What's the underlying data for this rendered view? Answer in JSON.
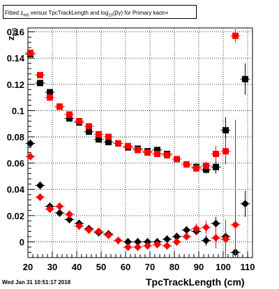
{
  "title": {
    "prefix": "Fitted  z",
    "z_sub": "m0",
    "middle": " versus TpcTrackLength and log",
    "log_sub": "10",
    "suffix": "(βγ) for Primary kaon+"
  },
  "footer_date": "Wed Jan 31 10:51:17 2018",
  "chart_data": {
    "type": "scatter",
    "xlabel": "TpcTrackLength (cm)",
    "ylabel": "z",
    "ylabel_sub": "m0",
    "xlim": [
      20,
      112
    ],
    "ylim": [
      -0.012,
      0.163
    ],
    "xticks": [
      20,
      30,
      40,
      50,
      60,
      70,
      80,
      90,
      100,
      110
    ],
    "xtick_labels": [
      "20",
      "30",
      "40",
      "50",
      "60",
      "70",
      "80",
      "90",
      "100",
      "110"
    ],
    "yticks": [
      0,
      0.02,
      0.04,
      0.06,
      0.08,
      0.1,
      0.12,
      0.14,
      0.16
    ],
    "ytick_labels": [
      "0",
      "0.02",
      "0.04",
      "0.06",
      "0.08",
      "0.1",
      "0.12",
      "0.14",
      "0.16"
    ],
    "grid": true,
    "colors": {
      "black_series": "#000000",
      "red_series": "#ff0000"
    },
    "series": [
      {
        "marker": "square",
        "color": "#000000",
        "points": [
          [
            21,
            0.143
          ],
          [
            25,
            0.121
          ],
          [
            29,
            0.114
          ],
          [
            33,
            0.103
          ],
          [
            37,
            0.094
          ],
          [
            41,
            0.091
          ],
          [
            45,
            0.084
          ],
          [
            49,
            0.078
          ],
          [
            53,
            0.076
          ],
          [
            57,
            0.075
          ],
          [
            61,
            0.072
          ],
          [
            65,
            0.071
          ],
          [
            69,
            0.069
          ],
          [
            73,
            0.07
          ],
          [
            77,
            0.067
          ],
          [
            81,
            0.063
          ],
          [
            85,
            0.059
          ],
          [
            89,
            0.057
          ],
          [
            93,
            0.055
          ],
          [
            97,
            0.057
          ],
          [
            101,
            0.085
          ],
          [
            109,
            0.124
          ]
        ],
        "yerr": [
          0.002,
          0.002,
          0.002,
          0.002,
          0.002,
          0.002,
          0.002,
          0.002,
          0.002,
          0.002,
          0.002,
          0.002,
          0.002,
          0.002,
          0.002,
          0.002,
          0.002,
          0.003,
          0.003,
          0.005,
          0.01,
          0.012
        ]
      },
      {
        "marker": "square",
        "color": "#ff0000",
        "points": [
          [
            21,
            0.144
          ],
          [
            25,
            0.127
          ],
          [
            29,
            0.11
          ],
          [
            33,
            0.103
          ],
          [
            37,
            0.097
          ],
          [
            41,
            0.092
          ],
          [
            45,
            0.088
          ],
          [
            49,
            0.082
          ],
          [
            53,
            0.08
          ],
          [
            57,
            0.075
          ],
          [
            61,
            0.073
          ],
          [
            65,
            0.07
          ],
          [
            69,
            0.068
          ],
          [
            73,
            0.067
          ],
          [
            77,
            0.066
          ],
          [
            81,
            0.063
          ],
          [
            85,
            0.059
          ],
          [
            89,
            0.056
          ],
          [
            93,
            0.058
          ],
          [
            97,
            0.067
          ],
          [
            101,
            0.069
          ],
          [
            105,
            0.157
          ]
        ],
        "yerr": [
          0.002,
          0.002,
          0.002,
          0.002,
          0.002,
          0.002,
          0.002,
          0.002,
          0.002,
          0.002,
          0.002,
          0.002,
          0.002,
          0.002,
          0.002,
          0.002,
          0.002,
          0.003,
          0.003,
          0.006,
          0.01,
          0.005
        ]
      },
      {
        "marker": "diamond",
        "color": "#000000",
        "points": [
          [
            21,
            0.075
          ],
          [
            25,
            0.043
          ],
          [
            29,
            0.027
          ],
          [
            33,
            0.022
          ],
          [
            37,
            0.017
          ],
          [
            41,
            0.014
          ],
          [
            45,
            0.01
          ],
          [
            49,
            0.007
          ],
          [
            53,
            0.006
          ],
          [
            61,
            0.0
          ],
          [
            65,
            0.0
          ],
          [
            69,
            0.0
          ],
          [
            73,
            0.0
          ],
          [
            77,
            0.002
          ],
          [
            81,
            0.004
          ],
          [
            85,
            0.009
          ],
          [
            89,
            0.008
          ],
          [
            93,
            0.001
          ],
          [
            97,
            0.014
          ],
          [
            101,
            0.004
          ],
          [
            105,
            -0.008
          ],
          [
            109,
            0.029
          ]
        ],
        "yerr": [
          0.003,
          0.003,
          0.003,
          0.003,
          0.003,
          0.003,
          0.003,
          0.003,
          0.003,
          0.003,
          0.003,
          0.003,
          0.003,
          0.003,
          0.003,
          0.003,
          0.003,
          0.004,
          0.005,
          0.008,
          0.03,
          0.01
        ]
      },
      {
        "marker": "diamond",
        "color": "#ff0000",
        "points": [
          [
            21,
            0.065
          ],
          [
            25,
            0.034
          ],
          [
            29,
            0.025
          ],
          [
            33,
            0.027
          ],
          [
            37,
            0.021
          ],
          [
            41,
            0.012
          ],
          [
            45,
            0.009
          ],
          [
            49,
            0.008
          ],
          [
            53,
            0.005
          ],
          [
            57,
            0.001
          ],
          [
            61,
            -0.004
          ],
          [
            65,
            -0.004
          ],
          [
            69,
            -0.003
          ],
          [
            73,
            -0.002
          ],
          [
            77,
            -0.003
          ],
          [
            81,
            0.0
          ],
          [
            85,
            0.004
          ],
          [
            89,
            0.01
          ],
          [
            93,
            0.011
          ],
          [
            97,
            0.003
          ],
          [
            101,
            0.002
          ],
          [
            105,
            0.013
          ]
        ],
        "yerr": [
          0.003,
          0.003,
          0.003,
          0.003,
          0.003,
          0.003,
          0.003,
          0.003,
          0.003,
          0.003,
          0.003,
          0.003,
          0.003,
          0.003,
          0.003,
          0.003,
          0.003,
          0.004,
          0.005,
          0.008,
          0.015,
          0.08
        ]
      }
    ]
  }
}
